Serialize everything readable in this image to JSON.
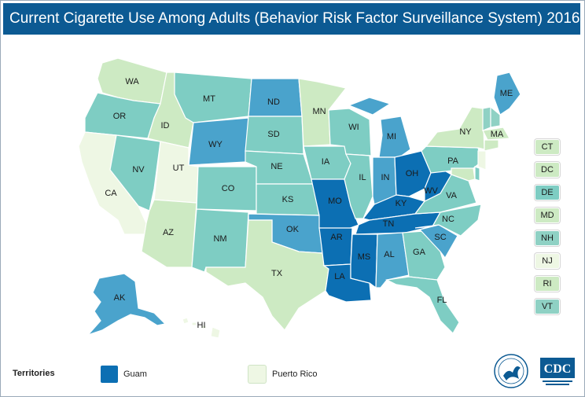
{
  "title": "Current Cigarette Use Among Adults (Behavior Risk Factor Surveillance System) 2016",
  "colors": {
    "lightest": "#eef7e4",
    "light_green": "#cdeac3",
    "teal_light": "#8fd1c4",
    "teal": "#7ecdc3",
    "blue_mid": "#4aa3cc",
    "blue_dark": "#0c6fb3",
    "title_bg": "#0c5a93"
  },
  "states": [
    {
      "abbr": "WA",
      "color": "#cdeac3"
    },
    {
      "abbr": "OR",
      "color": "#7ecdc3"
    },
    {
      "abbr": "CA",
      "color": "#eef7e4"
    },
    {
      "abbr": "NV",
      "color": "#7ecdc3"
    },
    {
      "abbr": "ID",
      "color": "#cdeac3"
    },
    {
      "abbr": "MT",
      "color": "#7ecdc3"
    },
    {
      "abbr": "WY",
      "color": "#4aa3cc"
    },
    {
      "abbr": "UT",
      "color": "#eef7e4"
    },
    {
      "abbr": "AZ",
      "color": "#cdeac3"
    },
    {
      "abbr": "CO",
      "color": "#7ecdc3"
    },
    {
      "abbr": "NM",
      "color": "#7ecdc3"
    },
    {
      "abbr": "ND",
      "color": "#4aa3cc"
    },
    {
      "abbr": "SD",
      "color": "#7ecdc3"
    },
    {
      "abbr": "NE",
      "color": "#7ecdc3"
    },
    {
      "abbr": "KS",
      "color": "#7ecdc3"
    },
    {
      "abbr": "OK",
      "color": "#4aa3cc"
    },
    {
      "abbr": "TX",
      "color": "#cdeac3"
    },
    {
      "abbr": "MN",
      "color": "#cdeac3"
    },
    {
      "abbr": "IA",
      "color": "#7ecdc3"
    },
    {
      "abbr": "MO",
      "color": "#0c6fb3"
    },
    {
      "abbr": "AR",
      "color": "#0c6fb3"
    },
    {
      "abbr": "LA",
      "color": "#0c6fb3"
    },
    {
      "abbr": "WI",
      "color": "#7ecdc3"
    },
    {
      "abbr": "IL",
      "color": "#7ecdc3"
    },
    {
      "abbr": "MI",
      "color": "#4aa3cc"
    },
    {
      "abbr": "IN",
      "color": "#4aa3cc"
    },
    {
      "abbr": "OH",
      "color": "#0c6fb3"
    },
    {
      "abbr": "KY",
      "color": "#0c6fb3"
    },
    {
      "abbr": "TN",
      "color": "#0c6fb3"
    },
    {
      "abbr": "MS",
      "color": "#0c6fb3"
    },
    {
      "abbr": "AL",
      "color": "#4aa3cc"
    },
    {
      "abbr": "GA",
      "color": "#7ecdc3"
    },
    {
      "abbr": "FL",
      "color": "#7ecdc3"
    },
    {
      "abbr": "SC",
      "color": "#4aa3cc"
    },
    {
      "abbr": "NC",
      "color": "#7ecdc3"
    },
    {
      "abbr": "VA",
      "color": "#7ecdc3"
    },
    {
      "abbr": "WV",
      "color": "#0c6fb3"
    },
    {
      "abbr": "PA",
      "color": "#7ecdc3"
    },
    {
      "abbr": "NY",
      "color": "#cdeac3"
    },
    {
      "abbr": "MA",
      "color": "#cdeac3"
    },
    {
      "abbr": "ME",
      "color": "#4aa3cc"
    },
    {
      "abbr": "AK",
      "color": "#4aa3cc"
    },
    {
      "abbr": "HI",
      "color": "#eef7e4"
    }
  ],
  "side_states": [
    {
      "abbr": "CT",
      "color": "#cdeac3"
    },
    {
      "abbr": "DC",
      "color": "#cdeac3"
    },
    {
      "abbr": "DE",
      "color": "#7ecdc3"
    },
    {
      "abbr": "MD",
      "color": "#cdeac3"
    },
    {
      "abbr": "NH",
      "color": "#8fd1c4"
    },
    {
      "abbr": "NJ",
      "color": "#eef7e4"
    },
    {
      "abbr": "RI",
      "color": "#cdeac3"
    },
    {
      "abbr": "VT",
      "color": "#8fd1c4"
    }
  ],
  "territories": {
    "label": "Territories",
    "items": [
      {
        "name": "Guam",
        "color": "#0c6fb3"
      },
      {
        "name": "Puerto Rico",
        "color": "#eef7e4"
      }
    ]
  },
  "logos": {
    "cdc_text": "CDC"
  }
}
